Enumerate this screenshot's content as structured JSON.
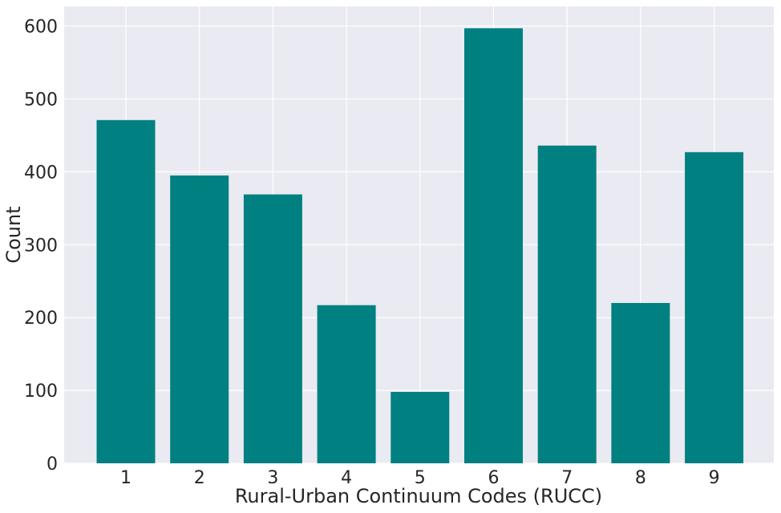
{
  "chart_data": {
    "type": "bar",
    "categories": [
      "1",
      "2",
      "3",
      "4",
      "5",
      "6",
      "7",
      "8",
      "9"
    ],
    "values": [
      471,
      395,
      369,
      217,
      98,
      597,
      436,
      220,
      427
    ],
    "title": "",
    "xlabel": "Rural-Urban Continuum Codes (RUCC)",
    "ylabel": "Count",
    "ylim": [
      0,
      627
    ],
    "yticks": [
      0,
      100,
      200,
      300,
      400,
      500,
      600
    ],
    "grid": true,
    "legend": "none",
    "colors": {
      "bar": "#008080",
      "plot_background": "#eaeaf2",
      "grid": "#ffffff"
    }
  }
}
